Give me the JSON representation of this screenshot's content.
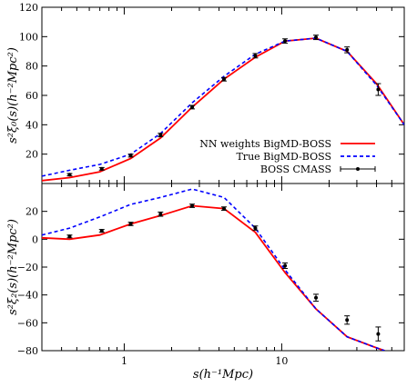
{
  "chart_data": [
    {
      "type": "line",
      "panel": "top",
      "ylabel": "s²ξ₀(s)(h⁻²Mpc²)",
      "xscale": "log",
      "xlim": [
        0.3,
        60
      ],
      "ylim": [
        0,
        120
      ],
      "yticks": [
        20,
        40,
        60,
        80,
        100,
        120
      ],
      "legend": "right",
      "series": [
        {
          "name": "NN weights BigMD-BOSS",
          "style": "solid",
          "color": "#ff0000",
          "x": [
            0.3,
            0.45,
            0.7,
            1.1,
            1.7,
            2.7,
            4.3,
            6.8,
            10.5,
            16.5,
            26,
            40,
            60
          ],
          "y": [
            2,
            4,
            8,
            17,
            31,
            52,
            71,
            86,
            97,
            99,
            90,
            68,
            40
          ]
        },
        {
          "name": "True BigMD-BOSS",
          "style": "dashed",
          "color": "#0000ff",
          "x": [
            0.3,
            0.45,
            0.7,
            1.1,
            1.7,
            2.7,
            4.3,
            6.8,
            10.5,
            16.5,
            26,
            40,
            60
          ],
          "y": [
            5,
            9,
            13,
            20,
            34,
            55,
            73,
            88,
            97,
            99,
            90,
            67,
            40
          ]
        },
        {
          "name": "BOSS CMASS",
          "style": "points",
          "color": "#000000",
          "x": [
            0.45,
            0.72,
            1.1,
            1.7,
            2.7,
            4.3,
            6.8,
            10.5,
            16.5,
            26,
            41
          ],
          "y": [
            6,
            10,
            19,
            33,
            52,
            71,
            87,
            97,
            99.5,
            91,
            64
          ],
          "err": [
            0.8,
            0.9,
            1.0,
            1.2,
            1.2,
            1.2,
            1.5,
            1.5,
            1.5,
            2.0,
            4.0
          ]
        }
      ]
    },
    {
      "type": "line",
      "panel": "bottom",
      "xlabel": "s(h⁻¹Mpc)",
      "ylabel": "s²ξ₂(s)(h⁻²Mpc²)",
      "xscale": "log",
      "xlim": [
        0.3,
        60
      ],
      "ylim": [
        -80,
        40
      ],
      "yticks": [
        -80,
        -60,
        -40,
        -20,
        0,
        20
      ],
      "xticks": [
        1,
        10
      ],
      "series": [
        {
          "name": "NN weights BigMD-BOSS",
          "style": "solid",
          "color": "#ff0000",
          "x": [
            0.3,
            0.45,
            0.7,
            1.1,
            1.7,
            2.7,
            4.3,
            6.8,
            10.5,
            16.5,
            26,
            40,
            45
          ],
          "y": [
            1,
            0,
            3,
            11,
            17,
            24,
            22,
            5,
            -24,
            -50,
            -70,
            -78,
            -80
          ]
        },
        {
          "name": "True BigMD-BOSS",
          "style": "dashed",
          "color": "#0000ff",
          "x": [
            0.3,
            0.45,
            0.7,
            1.1,
            1.7,
            2.7,
            4.3,
            6.8,
            10.5,
            16.5,
            26,
            40,
            45
          ],
          "y": [
            3,
            8,
            16,
            25,
            30,
            36,
            30,
            8,
            -22,
            -50,
            -70,
            -78,
            -80
          ]
        },
        {
          "name": "BOSS CMASS",
          "style": "points",
          "color": "#000000",
          "x": [
            0.45,
            0.72,
            1.1,
            1.7,
            2.7,
            4.3,
            6.8,
            10.5,
            16.5,
            26,
            41
          ],
          "y": [
            2,
            6,
            11,
            18,
            24,
            22,
            8,
            -19,
            -42,
            -58,
            -68
          ],
          "err": [
            1.0,
            1.0,
            1.2,
            1.5,
            1.2,
            1.2,
            1.5,
            2,
            2.5,
            3,
            5
          ]
        }
      ]
    }
  ]
}
